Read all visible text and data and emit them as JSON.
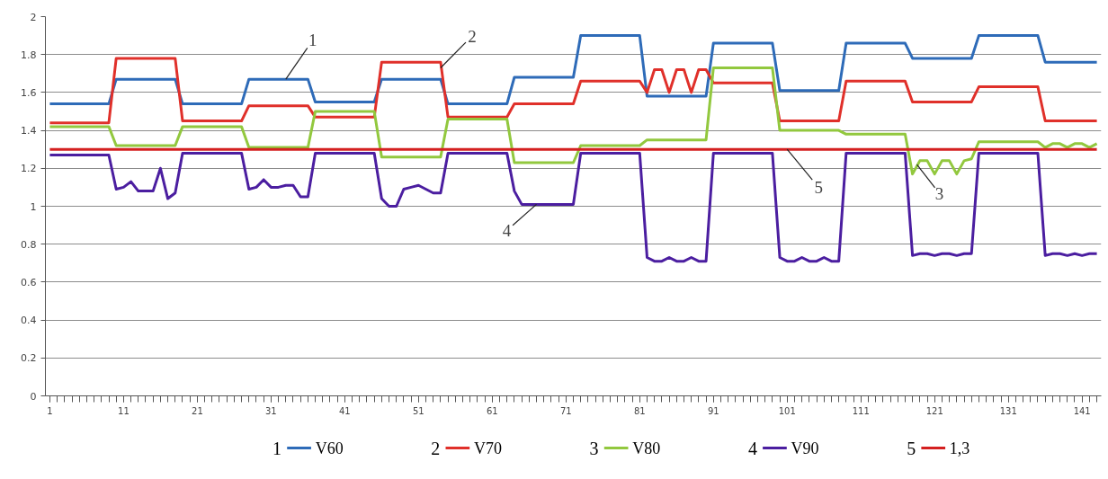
{
  "chart_data": {
    "type": "line",
    "x": [
      1,
      2,
      3,
      4,
      5,
      6,
      7,
      8,
      9,
      10,
      11,
      12,
      13,
      14,
      15,
      16,
      17,
      18,
      19,
      20,
      21,
      22,
      23,
      24,
      25,
      26,
      27,
      28,
      29,
      30,
      31,
      32,
      33,
      34,
      35,
      36,
      37,
      38,
      39,
      40,
      41,
      42,
      43,
      44,
      45,
      46,
      47,
      48,
      49,
      50,
      51,
      52,
      53,
      54,
      55,
      56,
      57,
      58,
      59,
      60,
      61,
      62,
      63,
      64,
      65,
      66,
      67,
      68,
      69,
      70,
      71,
      72,
      73,
      74,
      75,
      76,
      77,
      78,
      79,
      80,
      81,
      82,
      83,
      84,
      85,
      86,
      87,
      88,
      89,
      90,
      91,
      92,
      93,
      94,
      95,
      96,
      97,
      98,
      99,
      100,
      101,
      102,
      103,
      104,
      105,
      106,
      107,
      108,
      109,
      110,
      111,
      112,
      113,
      114,
      115,
      116,
      117,
      118,
      119,
      120,
      121,
      122,
      123,
      124,
      125,
      126,
      127,
      128,
      129,
      130,
      131,
      132,
      133,
      134,
      135,
      136,
      137,
      138,
      139,
      140,
      141,
      142,
      143
    ],
    "xlim": [
      0.4,
      143.6
    ],
    "xticks": [
      1,
      11,
      21,
      31,
      41,
      51,
      61,
      71,
      81,
      91,
      101,
      111,
      121,
      131,
      141
    ],
    "ylim": [
      0,
      2
    ],
    "yticks": [
      0,
      0.2,
      0.4,
      0.6,
      0.8,
      1,
      1.2,
      1.4,
      1.6,
      1.8,
      2
    ],
    "grid": "y",
    "line_style": "solid",
    "marker": "none",
    "legend": "bottom",
    "series": [
      {
        "name": "V60",
        "color": "#2e6bb8",
        "values": [
          1.54,
          1.54,
          1.54,
          1.54,
          1.54,
          1.54,
          1.54,
          1.54,
          1.54,
          1.67,
          1.67,
          1.67,
          1.67,
          1.67,
          1.67,
          1.67,
          1.67,
          1.67,
          1.54,
          1.54,
          1.54,
          1.54,
          1.54,
          1.54,
          1.54,
          1.54,
          1.54,
          1.67,
          1.67,
          1.67,
          1.67,
          1.67,
          1.67,
          1.67,
          1.67,
          1.67,
          1.55,
          1.55,
          1.55,
          1.55,
          1.55,
          1.55,
          1.55,
          1.55,
          1.55,
          1.67,
          1.67,
          1.67,
          1.67,
          1.67,
          1.67,
          1.67,
          1.67,
          1.67,
          1.54,
          1.54,
          1.54,
          1.54,
          1.54,
          1.54,
          1.54,
          1.54,
          1.54,
          1.68,
          1.68,
          1.68,
          1.68,
          1.68,
          1.68,
          1.68,
          1.68,
          1.68,
          1.9,
          1.9,
          1.9,
          1.9,
          1.9,
          1.9,
          1.9,
          1.9,
          1.9,
          1.58,
          1.58,
          1.58,
          1.58,
          1.58,
          1.58,
          1.58,
          1.58,
          1.58,
          1.86,
          1.86,
          1.86,
          1.86,
          1.86,
          1.86,
          1.86,
          1.86,
          1.86,
          1.61,
          1.61,
          1.61,
          1.61,
          1.61,
          1.61,
          1.61,
          1.61,
          1.61,
          1.86,
          1.86,
          1.86,
          1.86,
          1.86,
          1.86,
          1.86,
          1.86,
          1.86,
          1.78,
          1.78,
          1.78,
          1.78,
          1.78,
          1.78,
          1.78,
          1.78,
          1.78,
          1.9,
          1.9,
          1.9,
          1.9,
          1.9,
          1.9,
          1.9,
          1.9,
          1.9,
          1.76,
          1.76,
          1.76,
          1.76,
          1.76,
          1.76,
          1.76,
          1.76
        ]
      },
      {
        "name": "V70",
        "color": "#e0302a",
        "values": [
          1.44,
          1.44,
          1.44,
          1.44,
          1.44,
          1.44,
          1.44,
          1.44,
          1.44,
          1.78,
          1.78,
          1.78,
          1.78,
          1.78,
          1.78,
          1.78,
          1.78,
          1.78,
          1.45,
          1.45,
          1.45,
          1.45,
          1.45,
          1.45,
          1.45,
          1.45,
          1.45,
          1.53,
          1.53,
          1.53,
          1.53,
          1.53,
          1.53,
          1.53,
          1.53,
          1.53,
          1.47,
          1.47,
          1.47,
          1.47,
          1.47,
          1.47,
          1.47,
          1.47,
          1.47,
          1.76,
          1.76,
          1.76,
          1.76,
          1.76,
          1.76,
          1.76,
          1.76,
          1.76,
          1.47,
          1.47,
          1.47,
          1.47,
          1.47,
          1.47,
          1.47,
          1.47,
          1.47,
          1.54,
          1.54,
          1.54,
          1.54,
          1.54,
          1.54,
          1.54,
          1.54,
          1.54,
          1.66,
          1.66,
          1.66,
          1.66,
          1.66,
          1.66,
          1.66,
          1.66,
          1.66,
          1.6,
          1.72,
          1.72,
          1.6,
          1.72,
          1.72,
          1.6,
          1.72,
          1.72,
          1.65,
          1.65,
          1.65,
          1.65,
          1.65,
          1.65,
          1.65,
          1.65,
          1.65,
          1.45,
          1.45,
          1.45,
          1.45,
          1.45,
          1.45,
          1.45,
          1.45,
          1.45,
          1.66,
          1.66,
          1.66,
          1.66,
          1.66,
          1.66,
          1.66,
          1.66,
          1.66,
          1.55,
          1.55,
          1.55,
          1.55,
          1.55,
          1.55,
          1.55,
          1.55,
          1.55,
          1.63,
          1.63,
          1.63,
          1.63,
          1.63,
          1.63,
          1.63,
          1.63,
          1.63,
          1.45,
          1.45,
          1.45,
          1.45,
          1.45,
          1.45,
          1.45,
          1.45
        ]
      },
      {
        "name": "V80",
        "color": "#92c83e",
        "values": [
          1.42,
          1.42,
          1.42,
          1.42,
          1.42,
          1.42,
          1.42,
          1.42,
          1.42,
          1.32,
          1.32,
          1.32,
          1.32,
          1.32,
          1.32,
          1.32,
          1.32,
          1.32,
          1.42,
          1.42,
          1.42,
          1.42,
          1.42,
          1.42,
          1.42,
          1.42,
          1.42,
          1.31,
          1.31,
          1.31,
          1.31,
          1.31,
          1.31,
          1.31,
          1.31,
          1.31,
          1.5,
          1.5,
          1.5,
          1.5,
          1.5,
          1.5,
          1.5,
          1.5,
          1.5,
          1.26,
          1.26,
          1.26,
          1.26,
          1.26,
          1.26,
          1.26,
          1.26,
          1.26,
          1.46,
          1.46,
          1.46,
          1.46,
          1.46,
          1.46,
          1.46,
          1.46,
          1.46,
          1.23,
          1.23,
          1.23,
          1.23,
          1.23,
          1.23,
          1.23,
          1.23,
          1.23,
          1.32,
          1.32,
          1.32,
          1.32,
          1.32,
          1.32,
          1.32,
          1.32,
          1.32,
          1.35,
          1.35,
          1.35,
          1.35,
          1.35,
          1.35,
          1.35,
          1.35,
          1.35,
          1.73,
          1.73,
          1.73,
          1.73,
          1.73,
          1.73,
          1.73,
          1.73,
          1.73,
          1.4,
          1.4,
          1.4,
          1.4,
          1.4,
          1.4,
          1.4,
          1.4,
          1.4,
          1.38,
          1.38,
          1.38,
          1.38,
          1.38,
          1.38,
          1.38,
          1.38,
          1.38,
          1.17,
          1.24,
          1.24,
          1.17,
          1.24,
          1.24,
          1.17,
          1.24,
          1.25,
          1.34,
          1.34,
          1.34,
          1.34,
          1.34,
          1.34,
          1.34,
          1.34,
          1.34,
          1.31,
          1.33,
          1.33,
          1.31,
          1.33,
          1.33,
          1.31,
          1.33
        ]
      },
      {
        "name": "V90",
        "color": "#4b1ea0",
        "values": [
          1.27,
          1.27,
          1.27,
          1.27,
          1.27,
          1.27,
          1.27,
          1.27,
          1.27,
          1.09,
          1.1,
          1.13,
          1.08,
          1.08,
          1.08,
          1.2,
          1.04,
          1.07,
          1.28,
          1.28,
          1.28,
          1.28,
          1.28,
          1.28,
          1.28,
          1.28,
          1.28,
          1.09,
          1.1,
          1.14,
          1.1,
          1.1,
          1.11,
          1.11,
          1.05,
          1.05,
          1.28,
          1.28,
          1.28,
          1.28,
          1.28,
          1.28,
          1.28,
          1.28,
          1.28,
          1.04,
          1.0,
          1.0,
          1.09,
          1.1,
          1.11,
          1.09,
          1.07,
          1.07,
          1.28,
          1.28,
          1.28,
          1.28,
          1.28,
          1.28,
          1.28,
          1.28,
          1.28,
          1.08,
          1.01,
          1.01,
          1.01,
          1.01,
          1.01,
          1.01,
          1.01,
          1.01,
          1.28,
          1.28,
          1.28,
          1.28,
          1.28,
          1.28,
          1.28,
          1.28,
          1.28,
          0.73,
          0.71,
          0.71,
          0.73,
          0.71,
          0.71,
          0.73,
          0.71,
          0.71,
          1.28,
          1.28,
          1.28,
          1.28,
          1.28,
          1.28,
          1.28,
          1.28,
          1.28,
          0.73,
          0.71,
          0.71,
          0.73,
          0.71,
          0.71,
          0.73,
          0.71,
          0.71,
          1.28,
          1.28,
          1.28,
          1.28,
          1.28,
          1.28,
          1.28,
          1.28,
          1.28,
          0.74,
          0.75,
          0.75,
          0.74,
          0.75,
          0.75,
          0.74,
          0.75,
          0.75,
          1.28,
          1.28,
          1.28,
          1.28,
          1.28,
          1.28,
          1.28,
          1.28,
          1.28,
          0.74,
          0.75,
          0.75,
          0.74,
          0.75,
          0.74,
          0.75,
          0.75
        ]
      },
      {
        "name": "1,3",
        "color": "#d42020",
        "values": [
          1.3,
          1.3,
          1.3,
          1.3,
          1.3,
          1.3,
          1.3,
          1.3,
          1.3,
          1.3,
          1.3,
          1.3,
          1.3,
          1.3,
          1.3,
          1.3,
          1.3,
          1.3,
          1.3,
          1.3,
          1.3,
          1.3,
          1.3,
          1.3,
          1.3,
          1.3,
          1.3,
          1.3,
          1.3,
          1.3,
          1.3,
          1.3,
          1.3,
          1.3,
          1.3,
          1.3,
          1.3,
          1.3,
          1.3,
          1.3,
          1.3,
          1.3,
          1.3,
          1.3,
          1.3,
          1.3,
          1.3,
          1.3,
          1.3,
          1.3,
          1.3,
          1.3,
          1.3,
          1.3,
          1.3,
          1.3,
          1.3,
          1.3,
          1.3,
          1.3,
          1.3,
          1.3,
          1.3,
          1.3,
          1.3,
          1.3,
          1.3,
          1.3,
          1.3,
          1.3,
          1.3,
          1.3,
          1.3,
          1.3,
          1.3,
          1.3,
          1.3,
          1.3,
          1.3,
          1.3,
          1.3,
          1.3,
          1.3,
          1.3,
          1.3,
          1.3,
          1.3,
          1.3,
          1.3,
          1.3,
          1.3,
          1.3,
          1.3,
          1.3,
          1.3,
          1.3,
          1.3,
          1.3,
          1.3,
          1.3,
          1.3,
          1.3,
          1.3,
          1.3,
          1.3,
          1.3,
          1.3,
          1.3,
          1.3,
          1.3,
          1.3,
          1.3,
          1.3,
          1.3,
          1.3,
          1.3,
          1.3,
          1.3,
          1.3,
          1.3,
          1.3,
          1.3,
          1.3,
          1.3,
          1.3,
          1.3,
          1.3,
          1.3,
          1.3,
          1.3,
          1.3,
          1.3,
          1.3,
          1.3,
          1.3,
          1.3,
          1.3,
          1.3,
          1.3,
          1.3,
          1.3,
          1.3,
          1.3
        ]
      }
    ],
    "annotations": [
      {
        "text": "1",
        "x": 33,
        "y": 1.67
      },
      {
        "text": "2",
        "x": 54,
        "y": 1.73
      },
      {
        "text": "3",
        "x": 118.6,
        "y": 1.22
      },
      {
        "text": "4",
        "x": 67,
        "y": 1.01
      },
      {
        "text": "5",
        "x": 101,
        "y": 1.3
      },
      "1",
      "2",
      "3",
      "4",
      "5"
    ]
  }
}
